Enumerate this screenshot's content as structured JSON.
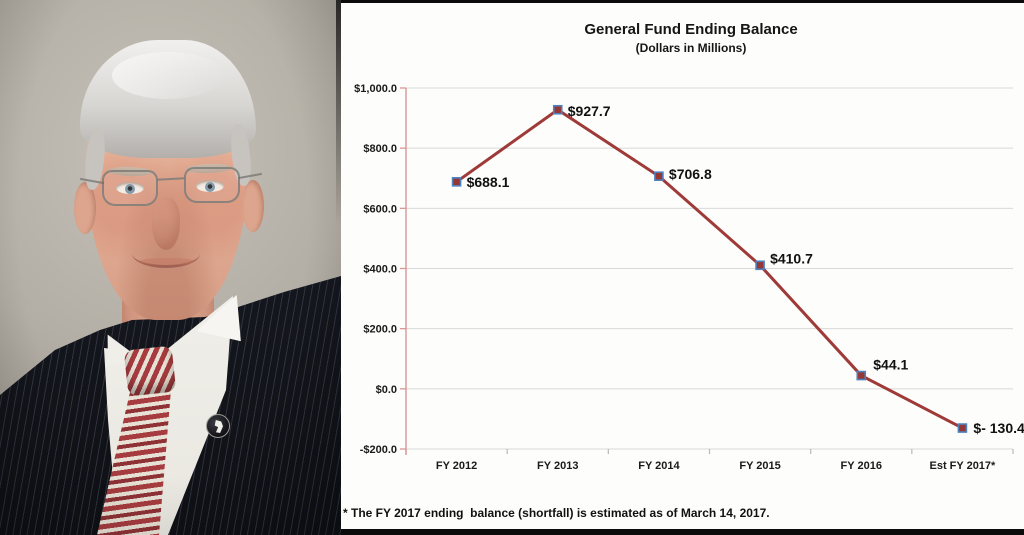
{
  "photo": {
    "alt": "Studio portrait of a gray-haired man wearing rimless glasses, a dark pinstripe suit, white shirt, red-and-white striped tie, and a round dark lapel pin"
  },
  "chart_data": {
    "type": "line",
    "title": "General Fund Ending Balance",
    "subtitle": "(Dollars in Millions)",
    "footnote": "* The FY 2017 ending  balance (shortfall) is estimated as of March 14, 2017.",
    "categories": [
      "FY 2012",
      "FY 2013",
      "FY 2014",
      "FY 2015",
      "FY 2016",
      "Est FY 2017*"
    ],
    "values": [
      688.1,
      927.7,
      706.8,
      410.7,
      44.1,
      -130.4
    ],
    "data_labels": [
      "$688.1",
      "$927.7",
      "$706.8",
      "$410.7",
      "$44.1",
      "$- 130.4"
    ],
    "y_ticks": [
      1000,
      800,
      600,
      400,
      200,
      0,
      -200
    ],
    "y_tick_labels": [
      "$1,000.0",
      "$800.0",
      "$600.0",
      "$400.0",
      "$200.0",
      "$0.0",
      "-$200.0"
    ],
    "ylim": [
      -200,
      1000
    ],
    "grid": true,
    "legend": "none",
    "colors": {
      "line": "#9e3a38",
      "marker_fill": "#953735",
      "marker_border": "#4f81bd",
      "gridline": "#d9d9d9",
      "y_axis": "#d99694",
      "x_axis": "#b9b9b9",
      "text": "#1a1a1a"
    }
  }
}
